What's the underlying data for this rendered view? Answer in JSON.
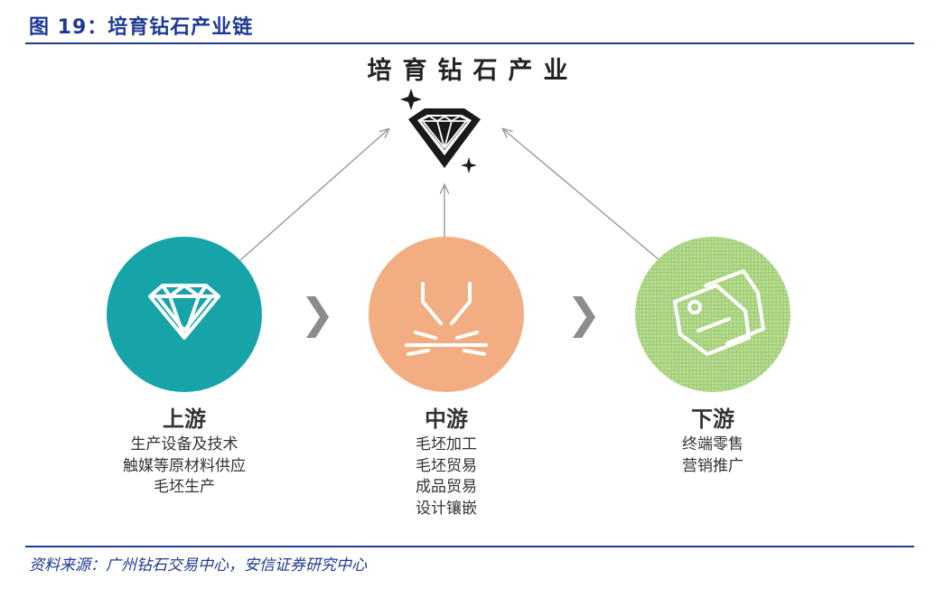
{
  "figure_title": "图 19：培育钻石产业链",
  "main_title": "培育钻石产业",
  "source": "资料来源：广州钻石交易中心，安信证券研究中心",
  "colors": {
    "upstream": "#17a4a9",
    "midstream": "#f2ae82",
    "downstream": "#a5d17a",
    "accent": "#1f3a93"
  },
  "stages": [
    {
      "label": "上游",
      "icon": "diamond-icon",
      "items": [
        "生产设备及技术",
        "触媒等原材料供应",
        "毛坯生产"
      ]
    },
    {
      "label": "中游",
      "icon": "processing-icon",
      "items": [
        "毛坯加工",
        "毛坯贸易",
        "成品贸易",
        "设计镶嵌"
      ]
    },
    {
      "label": "下游",
      "icon": "price-tag-icon",
      "items": [
        "终端零售",
        "营销推广"
      ]
    }
  ],
  "chevron": "❯"
}
